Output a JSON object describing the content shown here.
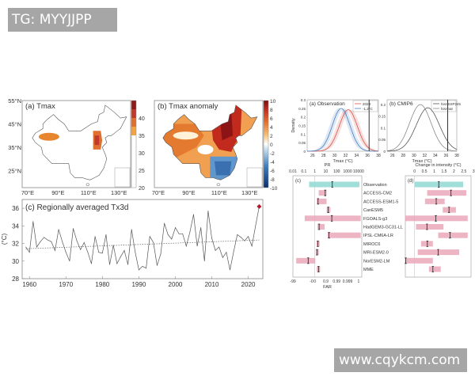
{
  "watermarks": {
    "top_left": "TG: MYYJJPP",
    "bottom_right": "www.cqykcm.com"
  },
  "colors": {
    "obs_bar": "#8fd8d2",
    "model_bar": "#eaa7b8",
    "red_curve": "#d9534f",
    "blue_curve": "#4a7fc1",
    "highlight": "#b5162f"
  },
  "chart_data": [
    {
      "type": "heatmap",
      "title": "(a) Tmax",
      "lat_ticks": [
        "55°N",
        "45°N",
        "35°N",
        "25°N"
      ],
      "lon_ticks": [
        "70°E",
        "90°E",
        "110°E",
        "130°E"
      ],
      "colorbar": {
        "ticks": [
          "20",
          "25",
          "30",
          "35",
          "40"
        ],
        "range": [
          20,
          45
        ]
      }
    },
    {
      "type": "heatmap",
      "title": "(b) Tmax anomaly",
      "lon_ticks": [
        "70°E",
        "90°E",
        "110°E",
        "130°E"
      ],
      "colorbar": {
        "ticks": [
          "10",
          "8",
          "6",
          "4",
          "2",
          "0",
          "-2",
          "-4",
          "-6",
          "-8",
          "-10"
        ],
        "range": [
          -10,
          10
        ]
      }
    },
    {
      "type": "line",
      "title": "(c) Regionally averaged Tx3d",
      "ylabel": "(°C)",
      "xlabel": "",
      "ylim": [
        28,
        37
      ],
      "xlim": [
        1958,
        2024
      ],
      "y_ticks": [
        "28",
        "30",
        "32",
        "34",
        "36"
      ],
      "x_ticks": [
        "1960",
        "1970",
        "1980",
        "1990",
        "2000",
        "2010",
        "2020"
      ],
      "start_year": 1959,
      "values": [
        31.6,
        31.0,
        34.5,
        31.6,
        32.2,
        32.7,
        32.4,
        32.2,
        31.2,
        33.6,
        32.2,
        31.0,
        30.0,
        33.7,
        32.3,
        31.3,
        32.1,
        31.0,
        29.7,
        32.8,
        31.0,
        30.9,
        33.0,
        29.6,
        31.8,
        29.7,
        30.5,
        31.2,
        29.6,
        33.6,
        31.0,
        29.0,
        29.4,
        29.2,
        32.8,
        32.1,
        29.5,
        30.8,
        34.3,
        33.0,
        32.5,
        33.8,
        33.1,
        33.1,
        31.7,
        33.3,
        35.3,
        31.7,
        33.8,
        30.0,
        35.7,
        32.6,
        31.2,
        31.6,
        30.4,
        31.0,
        29.0,
        31.1,
        33.0,
        32.7,
        32.3,
        32.8,
        31.7,
        34.0,
        36.2
      ],
      "trend": [
        31.4,
        32.4
      ]
    },
    {
      "type": "line",
      "title": "(a) Observation",
      "xlabel": "Tmax (°C)",
      "ylabel": "Density",
      "xlim": [
        25,
        38
      ],
      "ylim": [
        0,
        0.3
      ],
      "x_ticks": [
        "26",
        "28",
        "30",
        "32",
        "34",
        "36",
        "38"
      ],
      "y_ticks": [
        "0",
        "0.05",
        "0.1",
        "0.15",
        "0.2",
        "0.25",
        "0.3"
      ],
      "series": [
        {
          "name": "2023",
          "mean": 32.5,
          "sd": 1.65
        },
        {
          "name": "-1.2°C",
          "mean": 31.2,
          "sd": 1.6
        }
      ],
      "event_value": 36.3
    },
    {
      "type": "line",
      "title": "(b) CMIP6",
      "xlabel": "Tmax (°C)",
      "xlim": [
        25,
        38
      ],
      "ylim": [
        0,
        0.22
      ],
      "x_ticks": [
        "26",
        "28",
        "30",
        "32",
        "34",
        "36",
        "38"
      ],
      "y_ticks": [
        "0",
        "0.05",
        "0.1",
        "0.15",
        "0.2"
      ],
      "series": [
        {
          "name": "hist-SSP245",
          "mean": 32.6,
          "sd": 2.15
        },
        {
          "name": "hist-nat",
          "mean": 31.2,
          "sd": 2.0
        }
      ],
      "event_value": 36.3
    },
    {
      "type": "bar",
      "title": "(c)",
      "top_axis_label": "PR",
      "bottom_axis_label": "FAR",
      "pr_ticks": [
        {
          "v": 0.01,
          "l": "0.01"
        },
        {
          "v": 0.1,
          "l": "0.1"
        },
        {
          "v": 1,
          "l": "1"
        },
        {
          "v": 10,
          "l": "10"
        },
        {
          "v": 100,
          "l": "100"
        },
        {
          "v": 1000,
          "l": "1000"
        },
        {
          "v": 10000,
          "l": "10000"
        }
      ],
      "far_ticks": [
        {
          "v": 0.0101,
          "l": "-99"
        },
        {
          "v": 0.5,
          "l": "-0"
        },
        {
          "v": 1,
          "l": "0"
        },
        {
          "v": 10,
          "l": "0.9"
        },
        {
          "v": 100,
          "l": "0.99"
        },
        {
          "v": 1000,
          "l": "0.999"
        },
        {
          "v": 10000,
          "l": "1"
        }
      ],
      "xlim_log10": [
        -2,
        4.3
      ],
      "categories": [
        "Observation",
        "ACCESS-CM2",
        "ACCESS-ESM1-5",
        "CanESM5",
        "FGOALS-g3",
        "HadGEM3-GC31-LL",
        "IPSL-CM6A-LR",
        "MIROC6",
        "MRI-ESM2-0",
        "NorESM2-LM",
        "MME"
      ],
      "low": [
        0.3,
        2.3,
        1.5,
        12,
        0.12,
        1.8,
        15,
        1.4,
        1.2,
        0.02,
        1.5
      ],
      "best": [
        40,
        9,
        2,
        17,
        36,
        2.5,
        20,
        1.9,
        1.6,
        0.25,
        2.2
      ],
      "high": [
        12000,
        12,
        12,
        27,
        16000,
        8,
        16000,
        2.8,
        2.4,
        1.1,
        3.1
      ]
    },
    {
      "type": "bar",
      "title": "(d)",
      "top_axis_label": "Change in intensity (°C)",
      "ticks": [
        "0",
        "0.5",
        "1",
        "1.5",
        "2",
        "2.5",
        "3"
      ],
      "xlim": [
        -0.47,
        2.87
      ],
      "categories": [
        "Observation",
        "ACCESS-CM2",
        "ACCESS-ESM1-5",
        "CanESM5",
        "FGOALS-g3",
        "HadGEM3-GC31-LL",
        "IPSL-CM6A-LR",
        "MIROC6",
        "MRI-ESM2-0",
        "NorESM2-LM",
        "MME"
      ],
      "low": [
        0,
        0.64,
        0.53,
        1.43,
        -0.47,
        0.07,
        1.2,
        0.33,
        0.16,
        -0.47,
        0.73
      ],
      "best": [
        1.23,
        1.85,
        1.1,
        1.75,
        1.08,
        0.63,
        1.8,
        0.65,
        1.2,
        -0.45,
        0.93
      ],
      "high": [
        2.47,
        2.63,
        1.53,
        2.1,
        2.7,
        1.47,
        2.7,
        0.93,
        2.27,
        0.93,
        1.33
      ]
    }
  ]
}
